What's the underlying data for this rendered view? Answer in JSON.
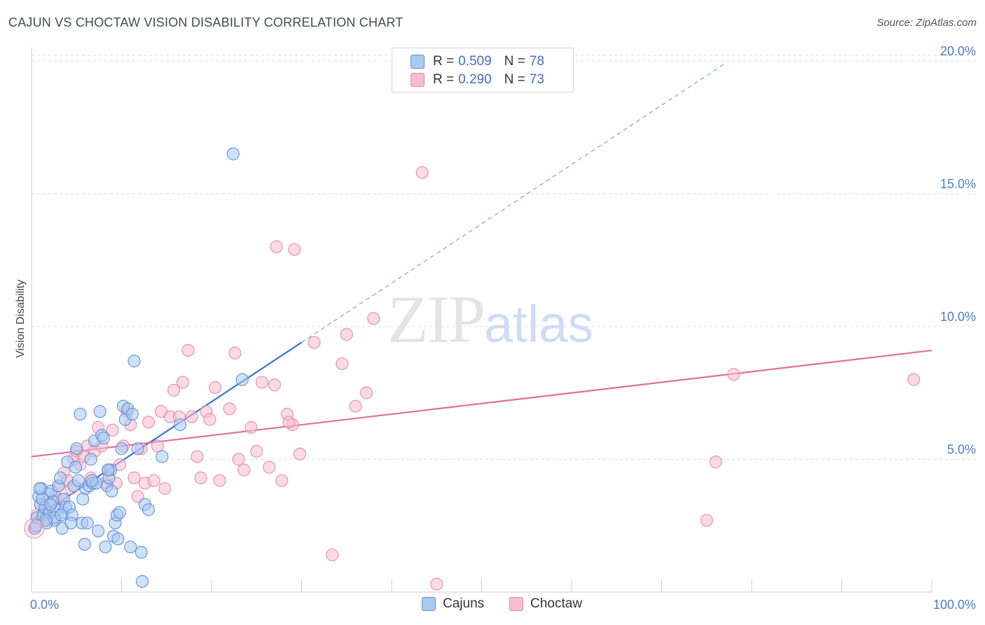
{
  "title": "CAJUN VS CHOCTAW VISION DISABILITY CORRELATION CHART",
  "source": "Source: ZipAtlas.com",
  "watermark": {
    "zip": "ZIP",
    "atlas": "atlas"
  },
  "legend": {
    "rows": [
      {
        "r_label": "R =",
        "r_value": "0.509",
        "n_label": "N =",
        "n_value": "78"
      },
      {
        "r_label": "R =",
        "r_value": "0.290",
        "n_label": "N =",
        "n_value": "73"
      }
    ]
  },
  "colors": {
    "cajuns_fill": "#aac8f0",
    "cajuns_stroke": "#5b8fd6",
    "cajuns_line": "#3b72cc",
    "choctaw_fill": "#f6bcd0",
    "choctaw_stroke": "#e88aab",
    "choctaw_line": "#e0709a",
    "tick_text": "#4a7cc9",
    "grid": "#dddddd"
  },
  "chart_data": {
    "type": "scatter",
    "title": "CAJUN VS CHOCTAW VISION DISABILITY CORRELATION CHART",
    "xlabel": "",
    "ylabel": "Vision Disability",
    "xlim": [
      0,
      100
    ],
    "ylim": [
      0,
      20.5
    ],
    "x_tick_labels": [
      "0.0%",
      "100.0%"
    ],
    "y_ticks": [
      5,
      10,
      15,
      20
    ],
    "y_tick_labels": [
      "5.0%",
      "10.0%",
      "15.0%",
      "20.0%"
    ],
    "legend_position": "top-center",
    "series": [
      {
        "name": "Cajuns",
        "r": 0.509,
        "n": 78,
        "trend": {
          "x0": 0,
          "y0": 2.7,
          "x1": 30,
          "y1": 9.4,
          "dashed_to_x": 77
        },
        "points": [
          [
            0.4,
            2.4
          ],
          [
            0.6,
            2.8
          ],
          [
            0.8,
            3.6
          ],
          [
            1.0,
            3.3
          ],
          [
            1.1,
            3.9
          ],
          [
            1.3,
            2.9
          ],
          [
            1.5,
            3.2
          ],
          [
            1.7,
            2.6
          ],
          [
            1.9,
            3.7
          ],
          [
            2.0,
            3.0
          ],
          [
            2.2,
            3.8
          ],
          [
            2.4,
            3.4
          ],
          [
            2.6,
            2.7
          ],
          [
            2.8,
            3.1
          ],
          [
            3.0,
            4.0
          ],
          [
            3.2,
            4.3
          ],
          [
            3.4,
            2.4
          ],
          [
            3.5,
            3.0
          ],
          [
            3.6,
            3.5
          ],
          [
            3.8,
            3.2
          ],
          [
            4.0,
            4.9
          ],
          [
            4.2,
            3.2
          ],
          [
            4.5,
            2.9
          ],
          [
            4.7,
            4.0
          ],
          [
            4.9,
            4.7
          ],
          [
            5.0,
            5.4
          ],
          [
            5.2,
            4.2
          ],
          [
            5.4,
            6.7
          ],
          [
            5.6,
            2.6
          ],
          [
            5.9,
            1.8
          ],
          [
            6.0,
            3.9
          ],
          [
            6.2,
            2.6
          ],
          [
            6.4,
            4.0
          ],
          [
            6.6,
            5.0
          ],
          [
            6.8,
            4.1
          ],
          [
            7.0,
            5.7
          ],
          [
            7.2,
            4.1
          ],
          [
            7.4,
            2.3
          ],
          [
            7.6,
            6.8
          ],
          [
            7.8,
            5.9
          ],
          [
            8.0,
            5.8
          ],
          [
            8.2,
            1.7
          ],
          [
            8.4,
            4.0
          ],
          [
            8.6,
            4.3
          ],
          [
            8.8,
            4.6
          ],
          [
            8.9,
            3.8
          ],
          [
            9.1,
            2.1
          ],
          [
            9.3,
            2.6
          ],
          [
            9.5,
            2.9
          ],
          [
            9.6,
            2.0
          ],
          [
            9.8,
            3.0
          ],
          [
            10.0,
            5.4
          ],
          [
            10.2,
            7.0
          ],
          [
            10.4,
            6.5
          ],
          [
            10.7,
            6.9
          ],
          [
            11.0,
            1.7
          ],
          [
            11.2,
            6.7
          ],
          [
            11.4,
            8.7
          ],
          [
            11.8,
            5.4
          ],
          [
            12.2,
            1.5
          ],
          [
            12.6,
            3.3
          ],
          [
            13.0,
            3.1
          ],
          [
            14.5,
            5.1
          ],
          [
            16.5,
            6.3
          ],
          [
            22.4,
            16.5
          ],
          [
            23.4,
            8.0
          ],
          [
            2.5,
            2.8
          ],
          [
            3.3,
            2.9
          ],
          [
            4.4,
            2.6
          ],
          [
            6.7,
            4.2
          ],
          [
            1.2,
            3.5
          ],
          [
            12.3,
            0.4
          ],
          [
            0.9,
            3.9
          ],
          [
            1.6,
            2.7
          ],
          [
            2.1,
            3.3
          ],
          [
            5.7,
            3.5
          ],
          [
            8.5,
            4.6
          ],
          [
            0.5,
            2.5
          ]
        ]
      },
      {
        "name": "Choctaw",
        "r": 0.29,
        "n": 73,
        "trend": {
          "x0": 0,
          "y0": 5.1,
          "x1": 100,
          "y1": 9.1
        },
        "points": [
          [
            0.3,
            2.4
          ],
          [
            0.6,
            2.9
          ],
          [
            1.0,
            3.3
          ],
          [
            1.4,
            3.0
          ],
          [
            1.8,
            2.8
          ],
          [
            2.2,
            3.3
          ],
          [
            2.6,
            3.6
          ],
          [
            3.0,
            4.0
          ],
          [
            3.4,
            3.5
          ],
          [
            3.6,
            4.5
          ],
          [
            4.0,
            4.2
          ],
          [
            4.4,
            3.9
          ],
          [
            4.7,
            5.0
          ],
          [
            5.0,
            5.3
          ],
          [
            5.4,
            4.8
          ],
          [
            5.8,
            5.1
          ],
          [
            6.2,
            5.5
          ],
          [
            6.6,
            4.3
          ],
          [
            7.0,
            5.3
          ],
          [
            7.4,
            6.2
          ],
          [
            7.8,
            5.5
          ],
          [
            8.2,
            4.1
          ],
          [
            8.6,
            4.6
          ],
          [
            9.0,
            6.1
          ],
          [
            9.4,
            4.1
          ],
          [
            9.8,
            4.8
          ],
          [
            10.2,
            5.5
          ],
          [
            10.6,
            6.8
          ],
          [
            11.0,
            6.3
          ],
          [
            11.4,
            4.3
          ],
          [
            11.8,
            3.6
          ],
          [
            12.2,
            5.4
          ],
          [
            12.6,
            4.1
          ],
          [
            13.0,
            6.4
          ],
          [
            13.6,
            4.2
          ],
          [
            14.0,
            5.5
          ],
          [
            14.4,
            6.8
          ],
          [
            14.8,
            3.9
          ],
          [
            15.4,
            6.6
          ],
          [
            15.8,
            7.6
          ],
          [
            16.4,
            6.6
          ],
          [
            16.8,
            7.9
          ],
          [
            17.4,
            9.1
          ],
          [
            17.8,
            6.6
          ],
          [
            18.4,
            5.1
          ],
          [
            18.8,
            4.3
          ],
          [
            19.4,
            6.8
          ],
          [
            19.8,
            6.5
          ],
          [
            20.4,
            7.7
          ],
          [
            20.9,
            4.2
          ],
          [
            22.0,
            6.9
          ],
          [
            23.0,
            5.0
          ],
          [
            23.6,
            4.6
          ],
          [
            24.4,
            6.2
          ],
          [
            25.0,
            5.3
          ],
          [
            25.6,
            7.9
          ],
          [
            26.4,
            4.7
          ],
          [
            27.0,
            7.8
          ],
          [
            27.8,
            4.2
          ],
          [
            28.4,
            6.7
          ],
          [
            29.0,
            6.3
          ],
          [
            29.8,
            5.2
          ],
          [
            31.4,
            9.4
          ],
          [
            33.4,
            1.4
          ],
          [
            35.0,
            9.7
          ],
          [
            36.0,
            7.0
          ],
          [
            37.2,
            7.5
          ],
          [
            38.0,
            10.3
          ],
          [
            43.4,
            15.8
          ],
          [
            45.0,
            0.3
          ],
          [
            76.0,
            4.9
          ],
          [
            78.0,
            8.2
          ],
          [
            98.0,
            8.0
          ]
        ]
      },
      {
        "name": "Choctaw-extra",
        "hidden_in_legend": true,
        "points": [
          [
            27.2,
            13.0
          ],
          [
            29.2,
            12.9
          ],
          [
            34.5,
            8.6
          ],
          [
            28.6,
            6.4
          ],
          [
            75.0,
            2.7
          ],
          [
            22.6,
            9.0
          ]
        ]
      }
    ]
  },
  "bottom_legend": {
    "items": [
      {
        "label": "Cajuns"
      },
      {
        "label": "Choctaw"
      }
    ]
  }
}
